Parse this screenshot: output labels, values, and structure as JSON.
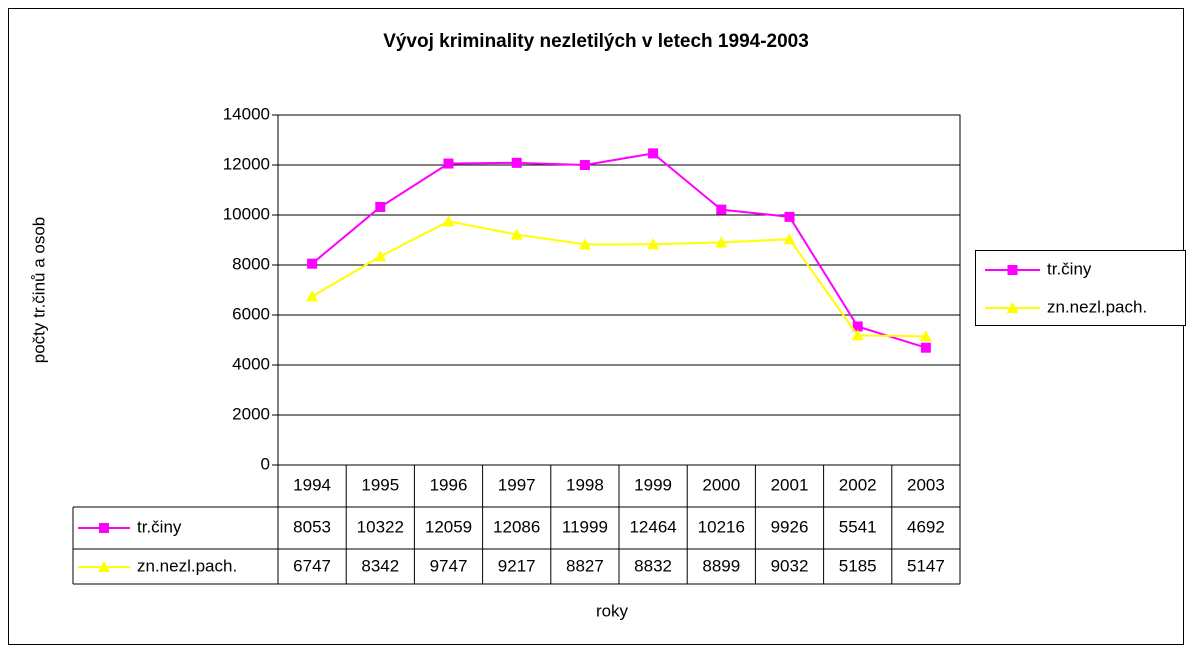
{
  "chart_data": {
    "type": "line",
    "title": "Vývoj kriminality nezletilých v letech 1994-2003",
    "xlabel": "roky",
    "ylabel": "počty tr.činů a osob",
    "categories": [
      "1994",
      "1995",
      "1996",
      "1997",
      "1998",
      "1999",
      "2000",
      "2001",
      "2002",
      "2003"
    ],
    "series": [
      {
        "name": "tr.činy",
        "color": "#ff00ff",
        "marker": "square",
        "values": [
          8053,
          10322,
          12059,
          12086,
          11999,
          12464,
          10216,
          9926,
          5541,
          4692
        ]
      },
      {
        "name": "zn.nezl.pach.",
        "color": "#ffff00",
        "marker": "triangle",
        "values": [
          6747,
          8342,
          9747,
          9217,
          8827,
          8832,
          8899,
          9032,
          5185,
          5147
        ]
      }
    ],
    "ylim": [
      0,
      14000
    ],
    "yticks": [
      0,
      2000,
      4000,
      6000,
      8000,
      10000,
      12000,
      14000
    ],
    "grid": true,
    "legend": "right"
  }
}
